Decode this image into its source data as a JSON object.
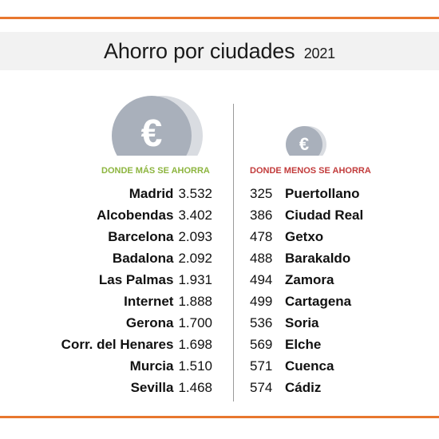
{
  "title": "Ahorro por ciudades",
  "year": "2021",
  "colors": {
    "rule": "#e8772e",
    "title_bg": "#f2f2f2",
    "coin": "#a9b0bb",
    "coin_shade": "#d9dce1",
    "head_left": "#8db53f",
    "head_right": "#c23b3b",
    "divider": "#9a9a9a"
  },
  "icons": {
    "left": "euro-coin-icon",
    "right": "euro-coin-icon",
    "symbol": "€"
  },
  "chart_data": [
    {
      "type": "table",
      "title": "DONDE MÁS SE AHORRA",
      "categories": [
        "Madrid",
        "Alcobendas",
        "Barcelona",
        "Badalona",
        "Las Palmas",
        "Internet",
        "Gerona",
        "Corr. del Henares",
        "Murcia",
        "Sevilla"
      ],
      "values": [
        "3.532",
        "3.402",
        "2.093",
        "2.092",
        "1.931",
        "1.888",
        "1.700",
        "1.698",
        "1.510",
        "1.468"
      ]
    },
    {
      "type": "table",
      "title": "DONDE MENOS SE AHORRA",
      "categories": [
        "Puertollano",
        "Ciudad Real",
        "Getxo",
        "Barakaldo",
        "Zamora",
        "Cartagena",
        "Soria",
        "Elche",
        "Cuenca",
        "Cádiz"
      ],
      "values": [
        "325",
        "386",
        "478",
        "488",
        "494",
        "499",
        "536",
        "569",
        "571",
        "574"
      ]
    }
  ]
}
